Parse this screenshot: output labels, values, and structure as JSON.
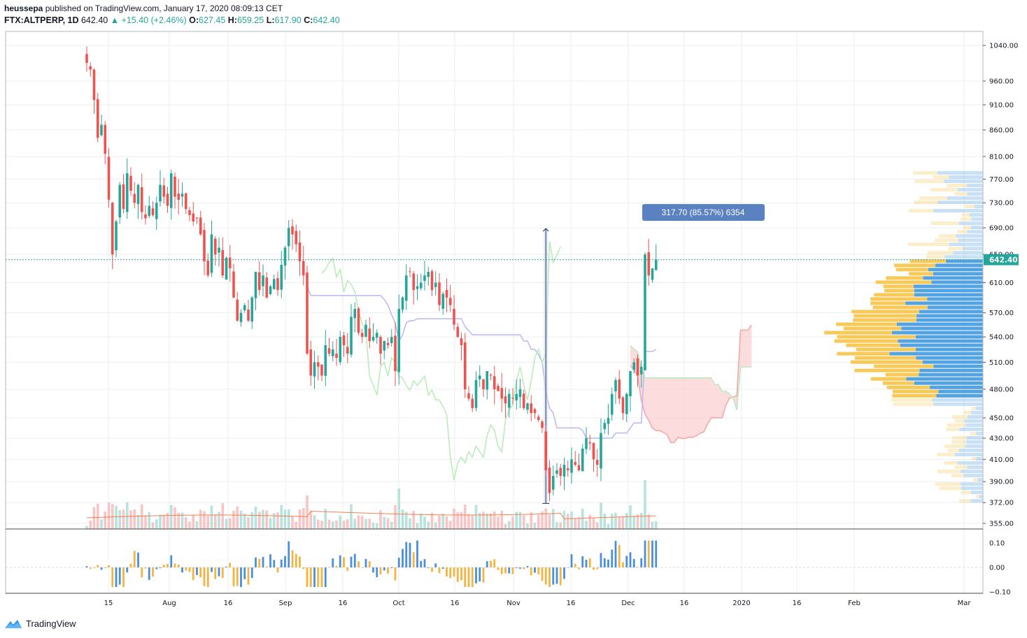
{
  "header": {
    "author": "heussepa",
    "published_text": "published on TradingView.com, January 17, 2020 08:09:13 CET",
    "symbol": "FTX:ALTPERP, 1D",
    "last": "642.40",
    "change": "▲ +15.40 (+2.46%)",
    "o_label": "O:",
    "o": "627.45",
    "h_label": "H:",
    "h": "659.25",
    "l_label": "L:",
    "l": "617.90",
    "c_label": "C:",
    "c": "642.40"
  },
  "footer": {
    "brand": "TradingView"
  },
  "measure_label": "317.70 (85.57%) 6354",
  "price_label": "642.40",
  "colors": {
    "up": "#26a69a",
    "down": "#ef5350",
    "grid": "#e9edf2",
    "kumo_fill": "#fbd0d0",
    "senkou_a": "#f4a5a5",
    "senkou_b": "#b8ebb8",
    "kijun": "#b8b8f5",
    "chikou": "#b6ecb6",
    "vp_up": "#4a9de0",
    "vp_down": "#f5c64f",
    "osc_pos": "#f5b342",
    "osc_neg": "#4a90d9",
    "label_bg": "#5b82c0"
  },
  "chart_data": {
    "type": "candlestick",
    "symbol": "FTX:ALTPERP",
    "interval": "1D",
    "y_axis_ticks": [
      355,
      372,
      390,
      410,
      430,
      450,
      480,
      510,
      540,
      570,
      610,
      650,
      690,
      730,
      770,
      810,
      860,
      910,
      960,
      1040
    ],
    "y_tick_labels": [
      "355.00",
      "372.00",
      "390.00",
      "410.00",
      "430.00",
      "450.00",
      "480.00",
      "510.00",
      "540.00",
      "570.00",
      "610.00",
      "650.00",
      "690.00",
      "730.00",
      "770.00",
      "810.00",
      "860.00",
      "910.00",
      "960.00",
      "1040.00"
    ],
    "y_scale": "log",
    "x_tick_labels": [
      "15",
      "Aug",
      "16",
      "Sep",
      "16",
      "Oct",
      "16",
      "Nov",
      "16",
      "Dec",
      "16",
      "2020",
      "16",
      "Feb",
      "Mar"
    ],
    "start_date": "2019-07-09",
    "closes": [
      1000,
      985,
      920,
      845,
      870,
      815,
      735,
      650,
      700,
      760,
      720,
      780,
      750,
      730,
      760,
      715,
      705,
      725,
      710,
      730,
      760,
      740,
      725,
      780,
      740,
      735,
      745,
      720,
      710,
      700,
      705,
      680,
      640,
      620,
      680,
      650,
      660,
      620,
      645,
      630,
      590,
      560,
      570,
      580,
      560,
      590,
      625,
      600,
      620,
      590,
      605,
      615,
      600,
      635,
      660,
      690,
      680,
      665,
      640,
      620,
      520,
      495,
      510,
      505,
      495,
      530,
      520,
      525,
      515,
      540,
      530,
      520,
      565,
      575,
      545,
      540,
      555,
      535,
      540,
      545,
      520,
      535,
      530,
      540,
      500,
      575,
      590,
      620,
      625,
      600,
      605,
      610,
      620,
      625,
      600,
      610,
      580,
      595,
      590,
      580,
      555,
      540,
      530,
      480,
      470,
      460,
      490,
      495,
      480,
      500,
      495,
      480,
      478,
      470,
      465,
      475,
      470,
      475,
      480,
      460,
      465,
      455,
      455,
      448,
      440,
      400,
      380,
      395,
      400,
      395,
      405,
      400,
      410,
      405,
      400,
      420,
      430,
      425,
      410,
      405,
      435,
      445,
      450,
      475,
      490,
      470,
      455,
      475,
      500,
      510,
      495,
      505,
      650,
      620,
      630,
      642.4
    ],
    "measure": {
      "from_price": 371.3,
      "to_price": 689.0,
      "change": 317.7,
      "percent": 85.57,
      "bars": 6354
    },
    "last_price": 642.4,
    "oscillator_ticks": [
      0.1,
      0.0,
      -0.1
    ],
    "oscillator_tick_labels": [
      "0.10",
      "0.00",
      "−0.10"
    ]
  }
}
